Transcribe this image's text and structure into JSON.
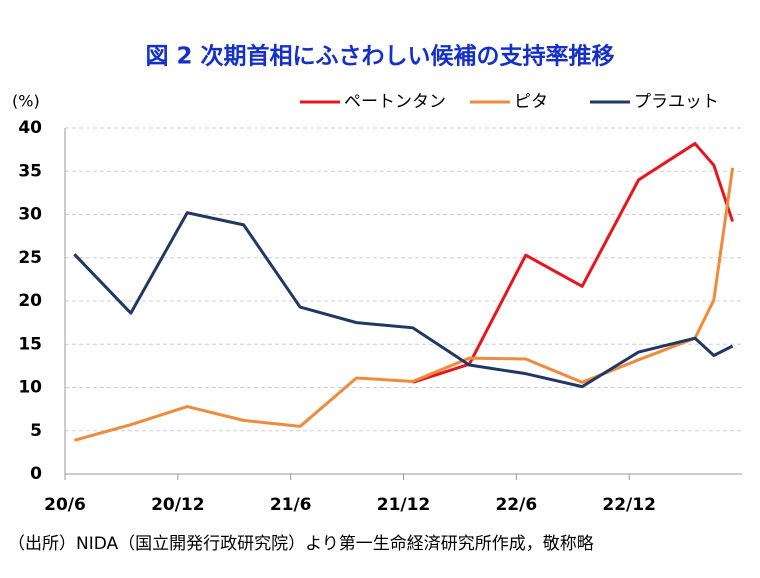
{
  "chart_data": {
    "type": "line",
    "title": "図 2  次期首相にふさわしい候補の支持率推移",
    "y_label": "(%)",
    "source": "（出所）NIDA（国立開発行政研究院）より第一生命経済研究所作成，敬称略",
    "x": [
      "20/6",
      "20/9",
      "20/12",
      "21/3",
      "21/6",
      "21/9",
      "21/12",
      "22/3",
      "22/6",
      "22/9",
      "22/12",
      "23/3",
      "23/4",
      "23/5"
    ],
    "series": [
      {
        "name": "ペートンタン",
        "color": "#e8141c",
        "values": [
          null,
          null,
          null,
          null,
          null,
          null,
          10.6,
          12.7,
          25.3,
          21.7,
          34.0,
          38.2,
          35.7,
          29.2
        ]
      },
      {
        "name": "ピタ",
        "color": "#f08a3c",
        "values": [
          3.9,
          5.7,
          7.8,
          6.2,
          5.5,
          11.1,
          10.7,
          13.4,
          13.3,
          10.6,
          13.2,
          15.7,
          20.1,
          35.4
        ]
      },
      {
        "name": "プラユット",
        "color": "#1f3864",
        "values": [
          25.4,
          18.6,
          30.2,
          28.8,
          19.3,
          17.5,
          16.9,
          12.6,
          11.6,
          10.1,
          14.1,
          15.7,
          13.7,
          14.8
        ]
      }
    ],
    "xlim": [
      "20/6",
      "23/6"
    ],
    "xticks": [
      "20/6",
      "20/12",
      "21/6",
      "21/12",
      "22/6",
      "22/12"
    ],
    "ylim": [
      0,
      40
    ],
    "yticks": [
      0,
      5,
      10,
      15,
      20,
      25,
      30,
      35,
      40
    ],
    "grid": true,
    "legend": "top-right"
  }
}
